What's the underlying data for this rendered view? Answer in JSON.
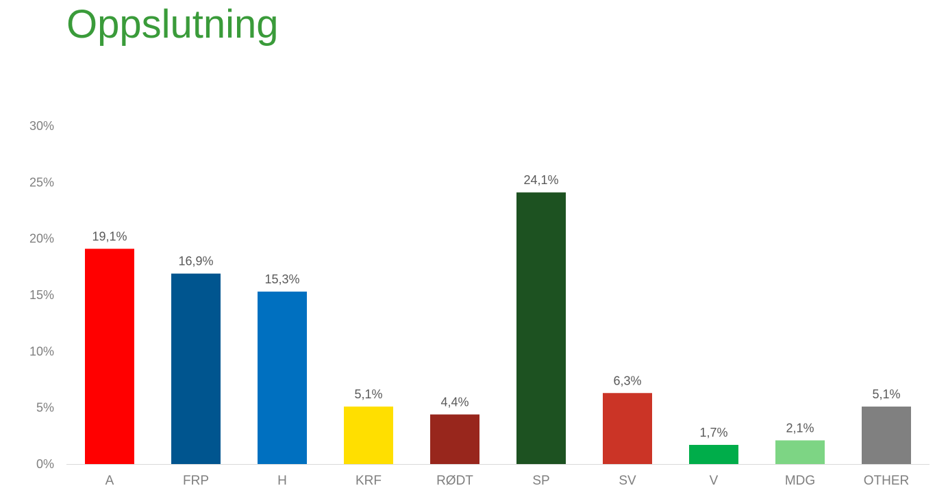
{
  "chart_data": {
    "type": "bar",
    "title": "Oppslutning",
    "title_color": "#3a9b3a",
    "xlabel": "",
    "ylabel": "",
    "categories": [
      "A",
      "FRP",
      "H",
      "KRF",
      "RØDT",
      "SP",
      "SV",
      "V",
      "MDG",
      "OTHER"
    ],
    "values": [
      19.1,
      16.9,
      15.3,
      5.1,
      4.4,
      24.1,
      6.3,
      1.7,
      2.1,
      5.1
    ],
    "data_labels": [
      "19,1%",
      "16,9%",
      "15,3%",
      "5,1%",
      "4,4%",
      "24,1%",
      "6,3%",
      "1,7%",
      "2,1%",
      "5,1%"
    ],
    "colors": [
      "#ff0000",
      "#00558f",
      "#0070c0",
      "#ffdf00",
      "#98261c",
      "#1d5221",
      "#cb3426",
      "#00ad4a",
      "#7dd584",
      "#808080"
    ],
    "y_ticks": [
      0,
      5,
      10,
      15,
      20,
      25,
      30
    ],
    "y_tick_labels": [
      "0%",
      "5%",
      "10%",
      "15%",
      "20%",
      "25%",
      "30%"
    ],
    "ylim": [
      0,
      30
    ],
    "grid": false,
    "legend": "none"
  }
}
